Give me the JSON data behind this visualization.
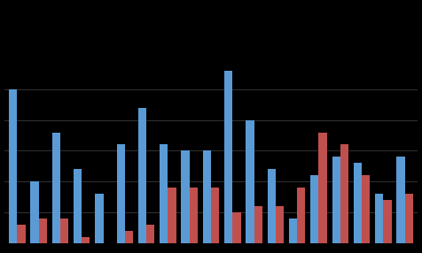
{
  "background_color": "#000000",
  "plot_bg_color": "#000000",
  "grid_color": "#3a3a3a",
  "blue_color": "#5B9BD5",
  "red_color": "#C0504D",
  "blue_values": [
    25,
    10,
    18,
    12,
    8,
    16,
    22,
    16,
    15,
    15,
    28,
    20,
    12,
    4,
    11,
    14,
    13,
    8,
    14
  ],
  "red_values": [
    3,
    4,
    4,
    1,
    0,
    2,
    3,
    9,
    9,
    9,
    5,
    6,
    6,
    9,
    18,
    16,
    11,
    7,
    8
  ],
  "ylim": [
    0,
    28
  ],
  "bar_width": 0.38
}
